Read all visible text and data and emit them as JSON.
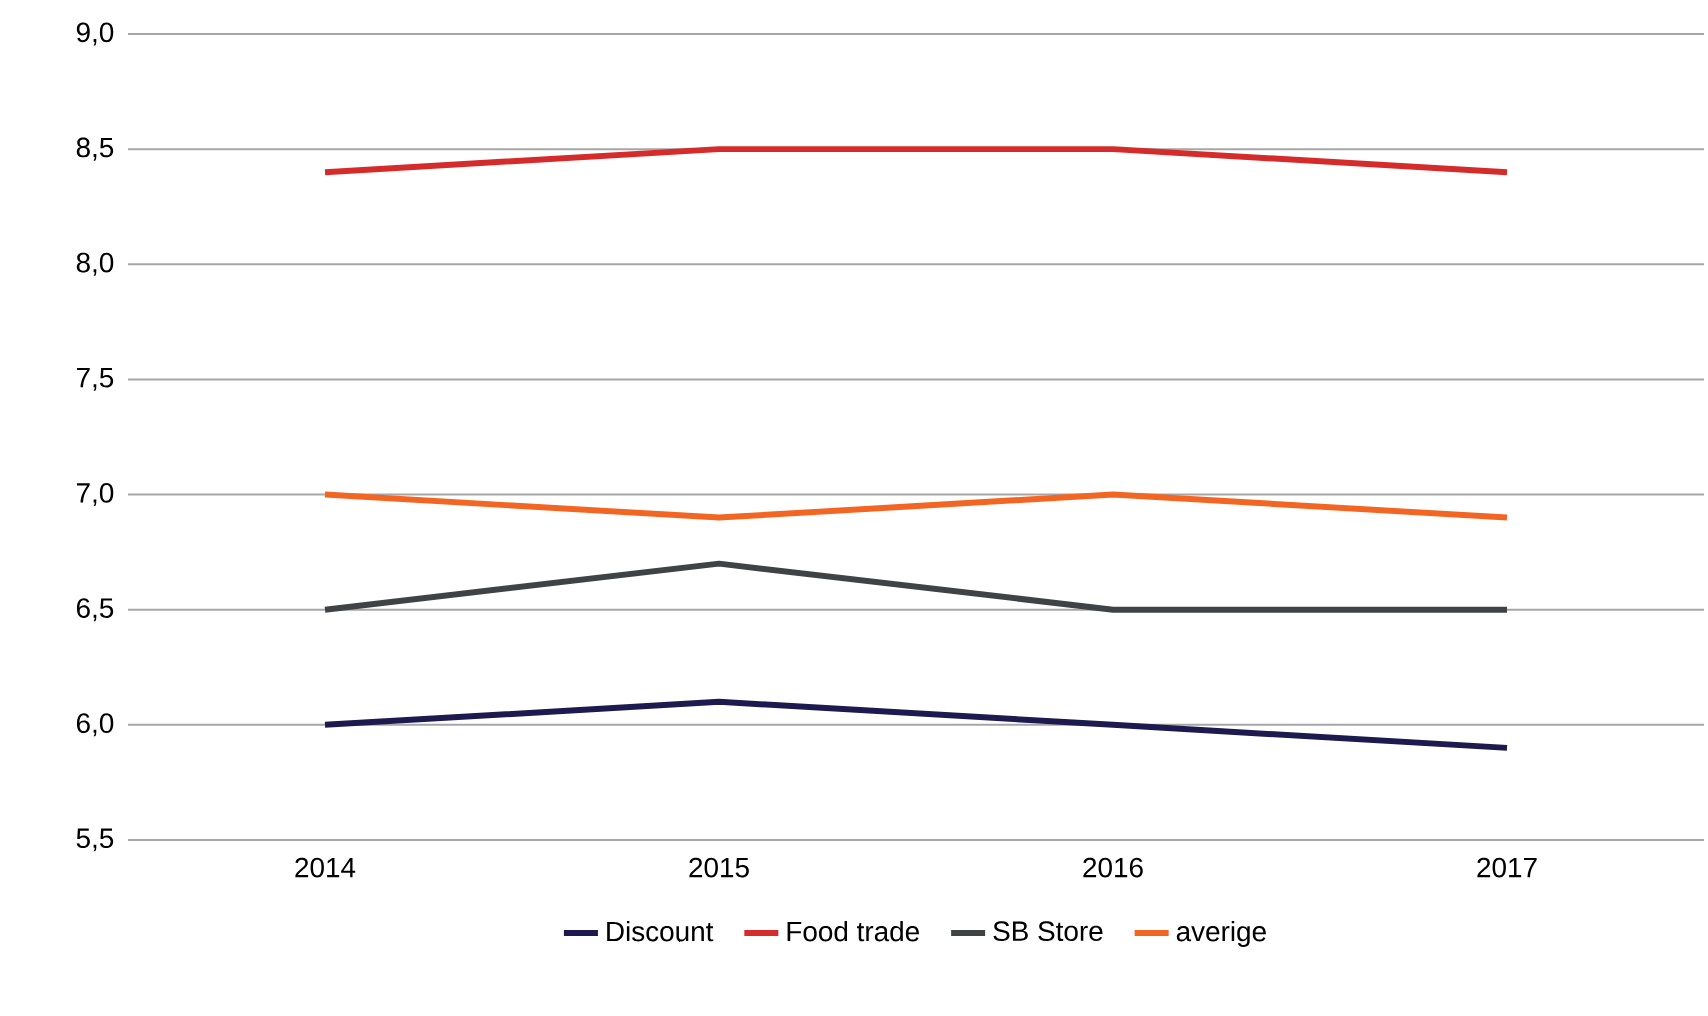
{
  "chart_data": {
    "type": "line",
    "categories": [
      "2014",
      "2015",
      "2016",
      "2017"
    ],
    "series": [
      {
        "name": "Discount",
        "color": "#1c1a4e",
        "values": [
          6.0,
          6.1,
          6.0,
          5.9
        ]
      },
      {
        "name": "Food trade",
        "color": "#d52b2b",
        "values": [
          8.4,
          8.5,
          8.5,
          8.4
        ]
      },
      {
        "name": "SB Store",
        "color": "#404345",
        "values": [
          6.5,
          6.7,
          6.5,
          6.5
        ]
      },
      {
        "name": "averige",
        "color": "#f26522",
        "values": [
          7.0,
          6.9,
          7.0,
          6.9
        ]
      }
    ],
    "ylim": [
      5.5,
      9.0
    ],
    "yticks": [
      {
        "value": 5.5,
        "label": "5,5"
      },
      {
        "value": 6.0,
        "label": "6,0"
      },
      {
        "value": 6.5,
        "label": "6,5"
      },
      {
        "value": 7.0,
        "label": "7,0"
      },
      {
        "value": 7.5,
        "label": "7,5"
      },
      {
        "value": 8.0,
        "label": "8,0"
      },
      {
        "value": 8.5,
        "label": "8,5"
      },
      {
        "value": 9.0,
        "label": "9,0"
      }
    ],
    "grid": "y",
    "legend": "bottom",
    "marker": "none",
    "line_style": "solid"
  }
}
